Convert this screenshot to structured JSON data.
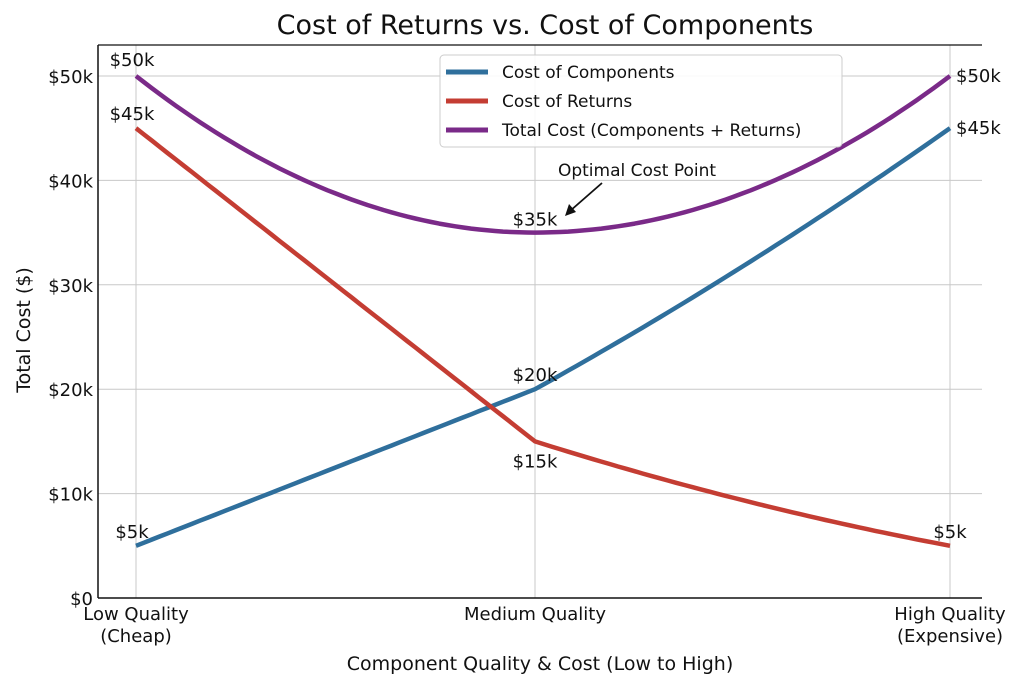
{
  "chart_data": {
    "type": "line",
    "title": "Cost of Returns vs. Cost of Components",
    "xlabel": "Component Quality & Cost (Low to High)",
    "ylabel": "Total Cost ($)",
    "categories": [
      "Low Quality\n(Cheap)",
      "Medium Quality",
      "High Quality\n(Expensive)"
    ],
    "ylim": [
      0,
      50000
    ],
    "yticks": [
      0,
      10000,
      20000,
      30000,
      40000,
      50000
    ],
    "ytick_labels": [
      "$0",
      "$10k",
      "$20k",
      "$30k",
      "$40k",
      "$50k"
    ],
    "grid": true,
    "legend_position": "top-center",
    "series": [
      {
        "name": "Cost of Components",
        "color": "#2f6f9c",
        "values": [
          5000,
          20000,
          45000
        ],
        "labels": [
          "$5k",
          "$20k",
          "$45k"
        ]
      },
      {
        "name": "Cost of Returns",
        "color": "#c43d33",
        "values": [
          45000,
          15000,
          5000
        ],
        "labels": [
          "$45k",
          "$15k",
          "$5k"
        ]
      },
      {
        "name": "Total Cost (Components + Returns)",
        "color": "#7a2a88",
        "values": [
          50000,
          35000,
          50000
        ],
        "labels": [
          "$50k",
          "$35k",
          "$50k"
        ]
      }
    ],
    "annotation": {
      "text": "Optimal Cost Point",
      "target_category": "Medium Quality",
      "target_value": 35000
    }
  }
}
